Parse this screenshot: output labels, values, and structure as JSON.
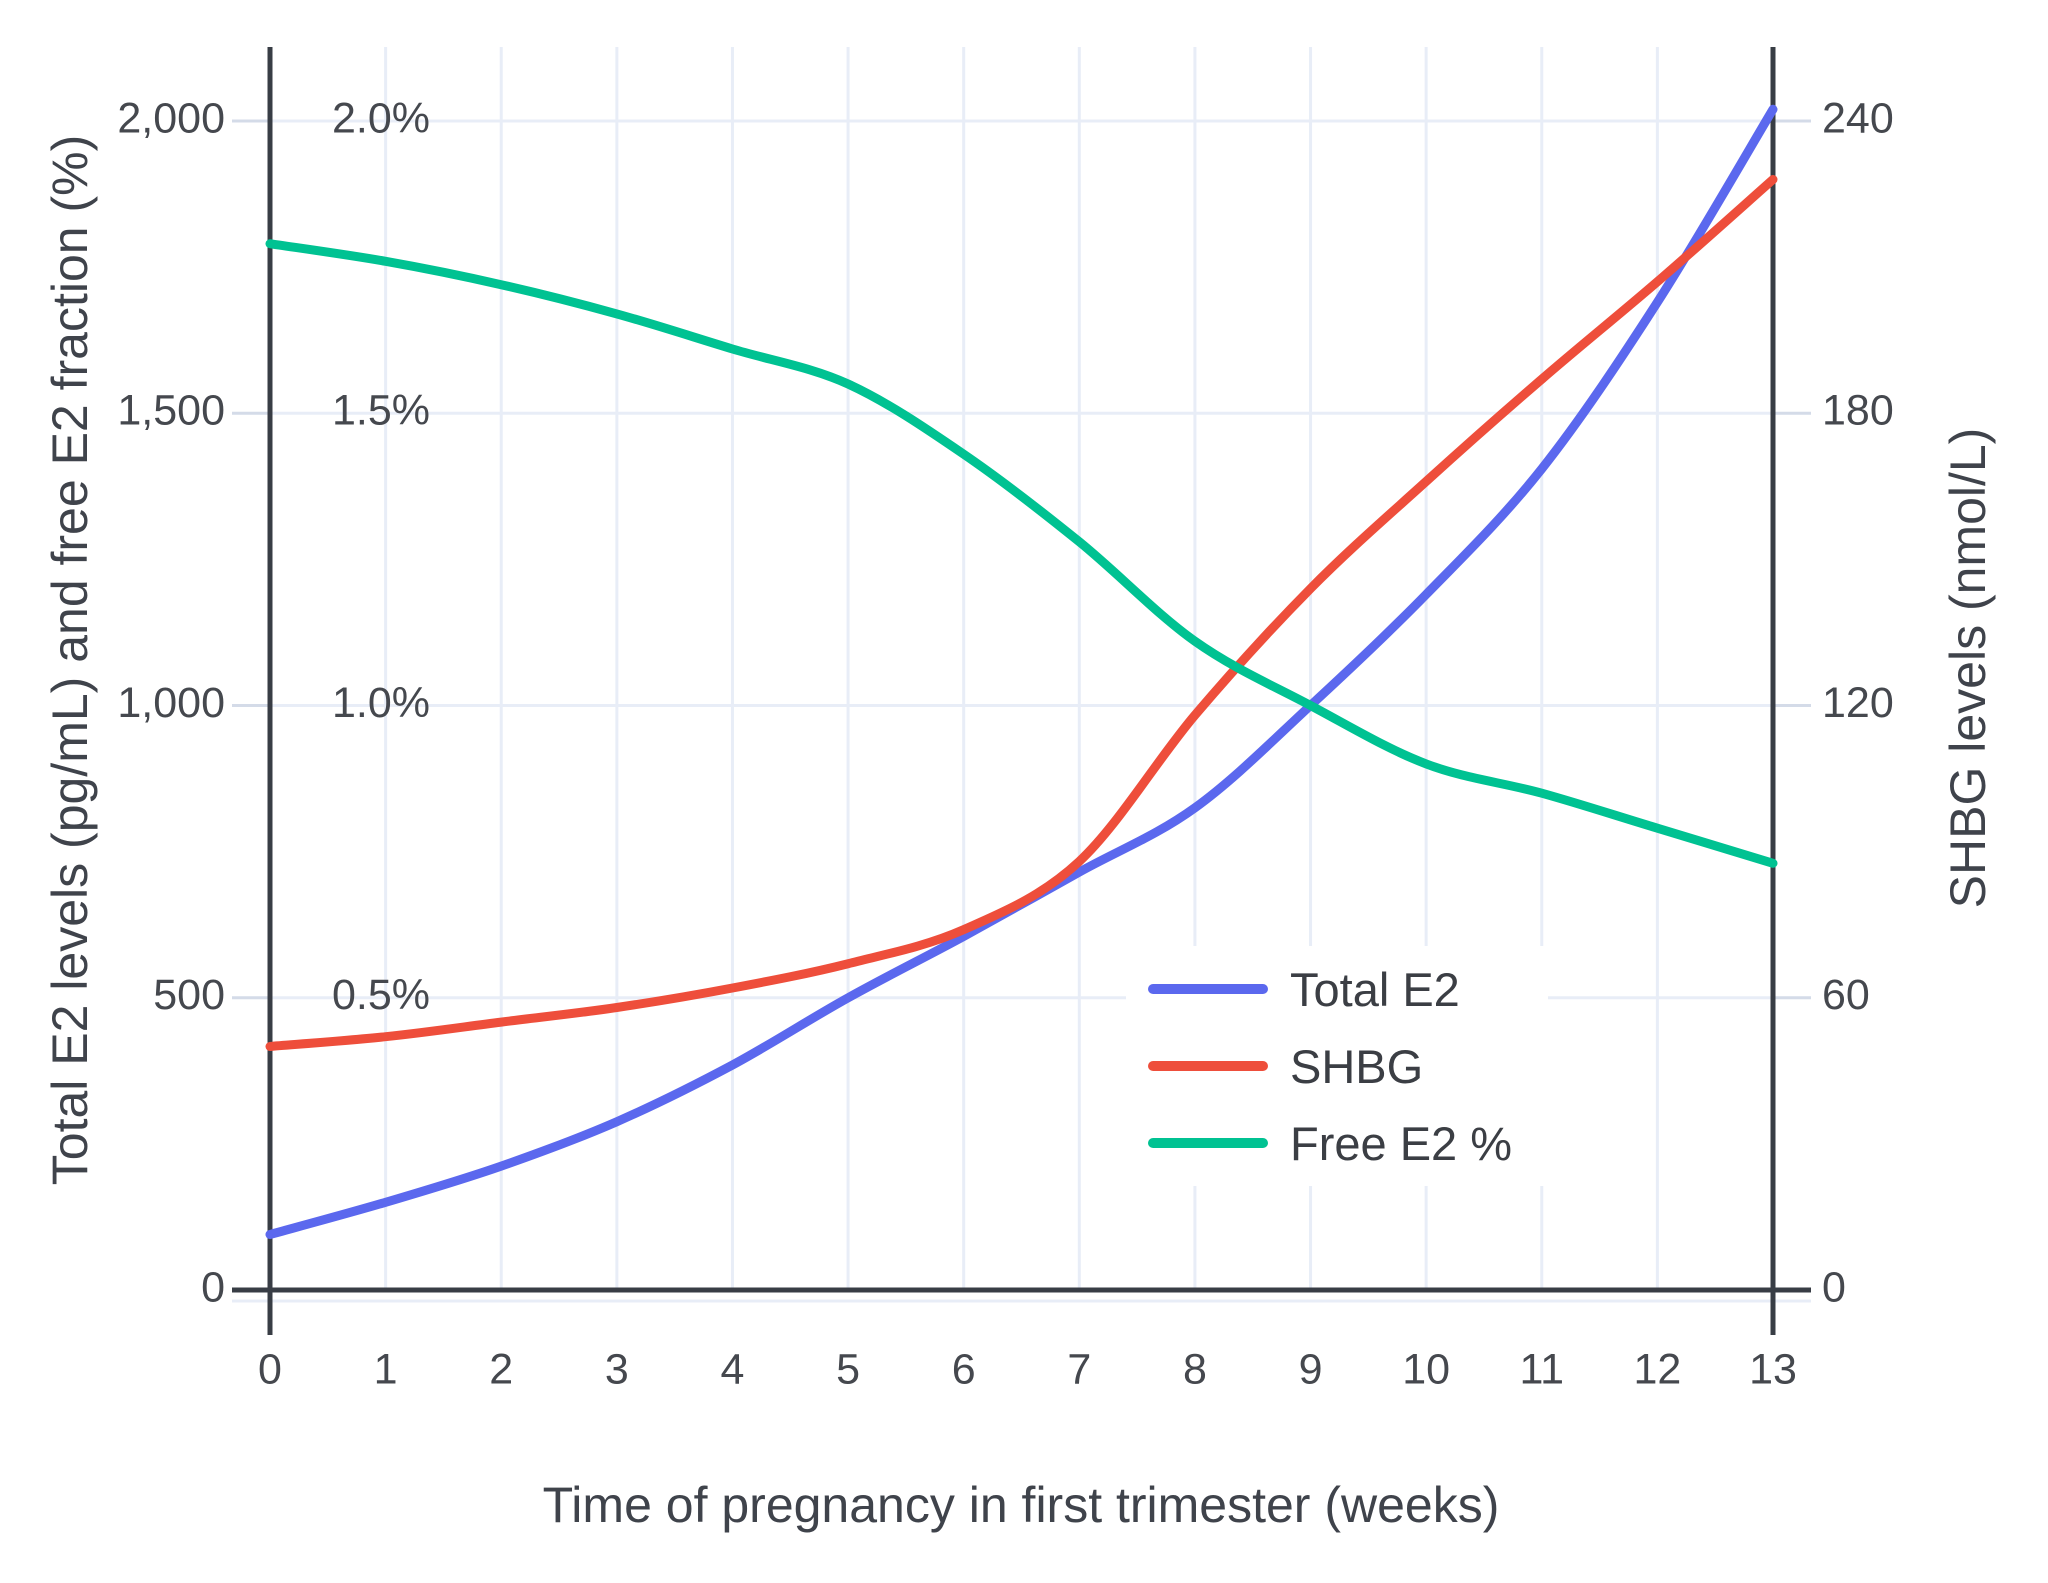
{
  "figure": {
    "x_axis_title": "Time of pregnancy in first trimester (weeks)",
    "left_axis_title": "Total E2 levels (pg/mL) and free E2 fraction (%)",
    "right_axis_title": "SHBG levels (nmol/L)"
  },
  "legend": {
    "items": [
      {
        "label": "Total E2"
      },
      {
        "label": "SHBG"
      },
      {
        "label": "Free E2 %"
      }
    ]
  },
  "colors": {
    "total_e2": "#5b68ee",
    "shbg": "#ee4e3b",
    "free_e2": "#00c292",
    "gridline": "#e8edf7",
    "tick_dash": "#d4dbe8",
    "axis_line": "#383d45",
    "tick_text": "#45484e"
  },
  "chart_data": {
    "type": "line",
    "title": "",
    "xlabel": "Time of pregnancy in first trimester (weeks)",
    "ylabel_left": "Total E2 levels (pg/mL) and free E2 fraction (%)",
    "ylabel_right": "SHBG levels (nmol/L)",
    "grid": true,
    "legend_position": "inside-right",
    "x": [
      0,
      1,
      2,
      3,
      4,
      5,
      6,
      7,
      8,
      9,
      10,
      11,
      12,
      13
    ],
    "x_tick_labels": [
      "0",
      "1",
      "2",
      "3",
      "4",
      "5",
      "6",
      "7",
      "8",
      "9",
      "10",
      "11",
      "12",
      "13"
    ],
    "left_axis": {
      "range": [
        0,
        2000
      ],
      "tick_values": [
        0,
        500,
        1000,
        1500,
        2000
      ],
      "tick_labels": [
        "0",
        "500",
        "1,000",
        "1,500",
        "2,000"
      ]
    },
    "right_axis": {
      "range": [
        0,
        240
      ],
      "tick_values": [
        0,
        60,
        120,
        180,
        240
      ],
      "tick_labels": [
        "0",
        "60",
        "120",
        "180",
        "240"
      ]
    },
    "percent_annotations": {
      "left_scale_values": [
        500,
        1000,
        1500,
        2000
      ],
      "labels": [
        "0.5%",
        "1.0%",
        "1.5%",
        "2.0%"
      ]
    },
    "series": [
      {
        "name": "Total E2",
        "axis": "left",
        "unit": "pg/mL",
        "color": "#5b68ee",
        "values": [
          95,
          150,
          212,
          288,
          385,
          500,
          605,
          715,
          825,
          1000,
          1190,
          1405,
          1690,
          2020
        ]
      },
      {
        "name": "SHBG",
        "axis": "right",
        "unit": "nmol/L",
        "color": "#ee4e3b",
        "values": [
          50,
          52,
          55,
          58,
          62,
          67,
          74,
          88,
          118,
          144,
          166,
          187,
          207,
          228
        ]
      },
      {
        "name": "Free E2 %",
        "axis": "left-percent",
        "unit": "%",
        "color": "#00c292",
        "values": [
          1.79,
          1.76,
          1.72,
          1.67,
          1.61,
          1.55,
          1.43,
          1.28,
          1.11,
          1.0,
          0.9,
          0.85,
          0.79,
          0.73
        ]
      }
    ]
  }
}
